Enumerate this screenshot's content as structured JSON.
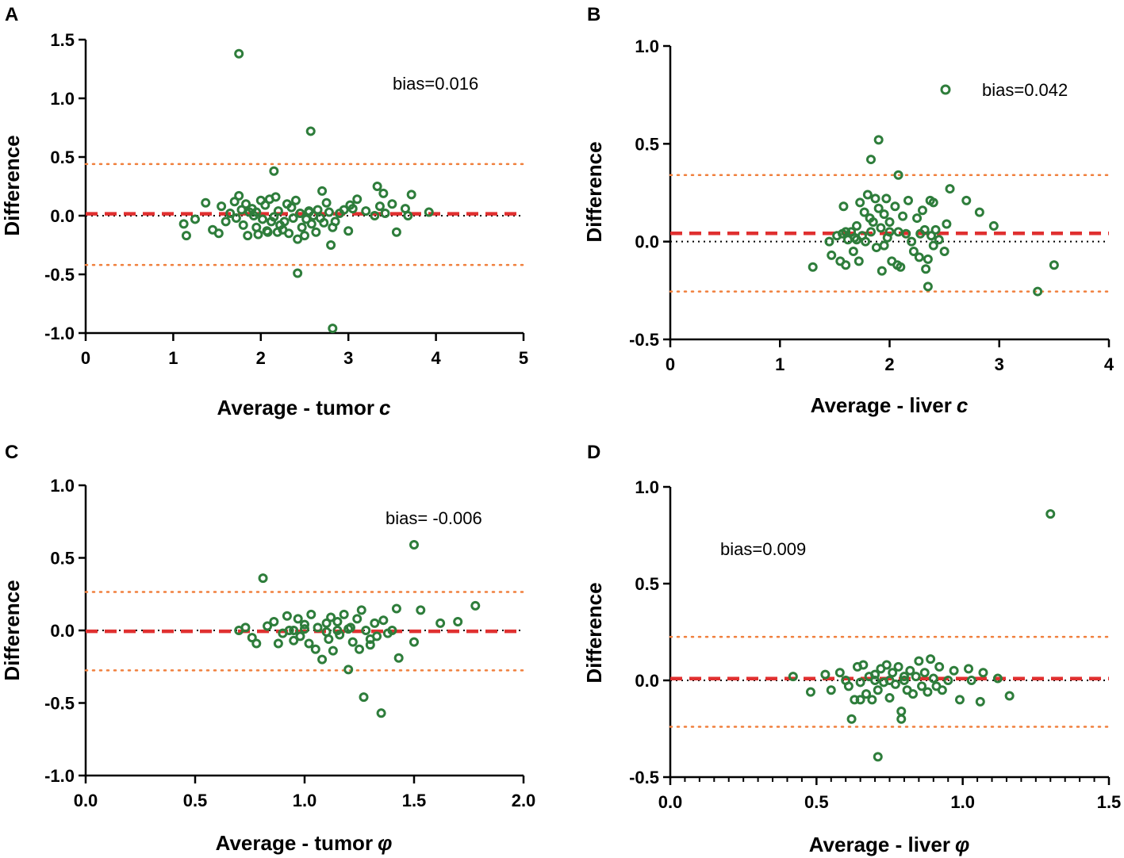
{
  "chart_data": [
    {
      "panel": "A",
      "type": "scatter",
      "title": "",
      "xlabel": "Average - tumor",
      "xlabel_symbol": "c",
      "ylabel": "Difference",
      "xlim": [
        0,
        5
      ],
      "ylim": [
        -1.0,
        1.5
      ],
      "xticks": [
        "0",
        "1",
        "2",
        "3",
        "4",
        "5"
      ],
      "xtick_values": [
        0,
        1,
        2,
        3,
        4,
        5
      ],
      "yticks": [
        "-1.0",
        "-0.5",
        "0.0",
        "0.5",
        "1.0",
        "1.5"
      ],
      "ytick_values": [
        -1.0,
        -0.5,
        0.0,
        0.5,
        1.0,
        1.5
      ],
      "bias_label": "bias=0.016",
      "bias": 0.016,
      "loa_upper": 0.44,
      "loa_lower": -0.42,
      "points": [
        [
          1.75,
          1.38
        ],
        [
          2.57,
          0.72
        ],
        [
          2.15,
          0.38
        ],
        [
          1.12,
          -0.07
        ],
        [
          1.15,
          -0.17
        ],
        [
          1.25,
          -0.03
        ],
        [
          1.37,
          0.11
        ],
        [
          1.45,
          -0.12
        ],
        [
          1.52,
          -0.15
        ],
        [
          1.55,
          0.08
        ],
        [
          1.6,
          -0.05
        ],
        [
          1.65,
          0.02
        ],
        [
          1.7,
          0.12
        ],
        [
          1.72,
          -0.02
        ],
        [
          1.75,
          0.17
        ],
        [
          1.78,
          0.05
        ],
        [
          1.8,
          -0.08
        ],
        [
          1.83,
          0.1
        ],
        [
          1.85,
          -0.17
        ],
        [
          1.87,
          0.03
        ],
        [
          1.9,
          0.06
        ],
        [
          1.92,
          0.0
        ],
        [
          1.95,
          -0.1
        ],
        [
          1.97,
          -0.16
        ],
        [
          2.0,
          0.13
        ],
        [
          2.02,
          -0.03
        ],
        [
          2.05,
          0.09
        ],
        [
          2.07,
          -0.13
        ],
        [
          2.1,
          0.14
        ],
        [
          2.12,
          -0.05
        ],
        [
          2.15,
          -0.01
        ],
        [
          2.17,
          0.16
        ],
        [
          2.19,
          -0.14
        ],
        [
          2.2,
          0.04
        ],
        [
          2.22,
          -0.08
        ],
        [
          2.25,
          -0.12
        ],
        [
          2.27,
          -0.05
        ],
        [
          2.3,
          0.1
        ],
        [
          2.32,
          -0.15
        ],
        [
          2.35,
          0.07
        ],
        [
          2.37,
          -0.02
        ],
        [
          2.4,
          0.13
        ],
        [
          2.42,
          -0.2
        ],
        [
          2.45,
          0.02
        ],
        [
          2.47,
          -0.1
        ],
        [
          2.5,
          -0.17
        ],
        [
          2.52,
          -0.03
        ],
        [
          2.55,
          0.04
        ],
        [
          2.58,
          -0.07
        ],
        [
          2.6,
          0.0
        ],
        [
          2.63,
          -0.14
        ],
        [
          2.65,
          0.05
        ],
        [
          2.68,
          -0.02
        ],
        [
          2.7,
          0.21
        ],
        [
          2.72,
          -0.06
        ],
        [
          2.75,
          0.11
        ],
        [
          2.78,
          0.03
        ],
        [
          2.8,
          -0.25
        ],
        [
          2.82,
          -0.1
        ],
        [
          2.85,
          -0.05
        ],
        [
          2.9,
          0.02
        ],
        [
          2.95,
          0.05
        ],
        [
          3.0,
          -0.13
        ],
        [
          3.02,
          0.09
        ],
        [
          3.05,
          0.06
        ],
        [
          3.1,
          0.14
        ],
        [
          3.2,
          0.04
        ],
        [
          3.3,
          0.0
        ],
        [
          3.33,
          0.25
        ],
        [
          3.36,
          0.08
        ],
        [
          3.4,
          0.19
        ],
        [
          3.42,
          0.02
        ],
        [
          3.5,
          0.1
        ],
        [
          3.55,
          -0.14
        ],
        [
          3.65,
          0.06
        ],
        [
          3.68,
          0.0
        ],
        [
          3.72,
          0.18
        ],
        [
          3.92,
          0.03
        ],
        [
          2.42,
          -0.49
        ],
        [
          2.82,
          -0.96
        ],
        [
          2.08,
          -0.14
        ],
        [
          1.95,
          0.03
        ],
        [
          2.55,
          0.03
        ]
      ]
    },
    {
      "panel": "B",
      "type": "scatter",
      "title": "",
      "xlabel": "Average - liver",
      "xlabel_symbol": "c",
      "ylabel": "Difference",
      "xlim": [
        0,
        4
      ],
      "ylim": [
        -0.5,
        1.0
      ],
      "xticks": [
        "0",
        "1",
        "2",
        "3",
        "4"
      ],
      "xtick_values": [
        0,
        1,
        2,
        3,
        4
      ],
      "yticks": [
        "-0.5",
        "0.0",
        "0.5",
        "1.0"
      ],
      "ytick_values": [
        -0.5,
        0.0,
        0.5,
        1.0
      ],
      "bias_label": "bias=0.042",
      "bias": 0.042,
      "loa_upper": 0.34,
      "loa_lower": -0.255,
      "legend_position": "top-right",
      "points": [
        [
          1.9,
          0.52
        ],
        [
          1.83,
          0.42
        ],
        [
          2.08,
          0.34
        ],
        [
          1.3,
          -0.13
        ],
        [
          1.45,
          0.0
        ],
        [
          1.47,
          -0.07
        ],
        [
          1.52,
          0.03
        ],
        [
          1.55,
          -0.1
        ],
        [
          1.57,
          0.04
        ],
        [
          1.58,
          0.18
        ],
        [
          1.6,
          -0.12
        ],
        [
          1.62,
          0.01
        ],
        [
          1.65,
          0.05
        ],
        [
          1.67,
          -0.05
        ],
        [
          1.68,
          0.02
        ],
        [
          1.7,
          0.08
        ],
        [
          1.72,
          -0.1
        ],
        [
          1.73,
          0.2
        ],
        [
          1.75,
          0.03
        ],
        [
          1.77,
          0.15
        ],
        [
          1.78,
          0.0
        ],
        [
          1.8,
          0.24
        ],
        [
          1.82,
          0.12
        ],
        [
          1.83,
          0.05
        ],
        [
          1.85,
          0.1
        ],
        [
          1.87,
          0.22
        ],
        [
          1.88,
          -0.03
        ],
        [
          1.9,
          0.17
        ],
        [
          1.92,
          0.07
        ],
        [
          1.93,
          -0.15
        ],
        [
          1.95,
          0.14
        ],
        [
          1.97,
          0.22
        ],
        [
          1.98,
          0.02
        ],
        [
          2.0,
          0.1
        ],
        [
          2.02,
          -0.1
        ],
        [
          2.05,
          0.18
        ],
        [
          2.07,
          -0.12
        ],
        [
          2.08,
          0.05
        ],
        [
          2.1,
          -0.13
        ],
        [
          2.12,
          0.13
        ],
        [
          2.15,
          0.04
        ],
        [
          2.17,
          0.21
        ],
        [
          2.2,
          0.0
        ],
        [
          2.22,
          -0.05
        ],
        [
          2.25,
          0.12
        ],
        [
          2.27,
          -0.08
        ],
        [
          2.3,
          0.16
        ],
        [
          2.32,
          0.06
        ],
        [
          2.33,
          -0.14
        ],
        [
          2.35,
          -0.09
        ],
        [
          2.37,
          0.21
        ],
        [
          2.38,
          0.03
        ],
        [
          2.4,
          -0.02
        ],
        [
          2.42,
          0.06
        ],
        [
          2.45,
          0.01
        ],
        [
          2.5,
          -0.05
        ],
        [
          2.52,
          0.09
        ],
        [
          2.55,
          0.27
        ],
        [
          2.7,
          0.21
        ],
        [
          2.82,
          0.15
        ],
        [
          2.95,
          0.08
        ],
        [
          3.35,
          -0.255
        ],
        [
          3.5,
          -0.12
        ],
        [
          2.35,
          -0.23
        ],
        [
          1.6,
          0.05
        ],
        [
          1.7,
          0.01
        ],
        [
          2.0,
          0.05
        ],
        [
          2.28,
          0.04
        ],
        [
          1.95,
          -0.02
        ],
        [
          2.4,
          0.2
        ]
      ]
    },
    {
      "panel": "C",
      "type": "scatter",
      "title": "",
      "xlabel": "Average - tumor",
      "xlabel_symbol": "φ",
      "ylabel": "Difference",
      "xlim": [
        0.0,
        2.0
      ],
      "ylim": [
        -1.0,
        1.0
      ],
      "xticks": [
        "0.0",
        "0.5",
        "1.0",
        "1.5",
        "2.0"
      ],
      "xtick_values": [
        0.0,
        0.5,
        1.0,
        1.5,
        2.0
      ],
      "yticks": [
        "-1.0",
        "-0.5",
        "0.0",
        "0.5",
        "1.0"
      ],
      "ytick_values": [
        -1.0,
        -0.5,
        0.0,
        0.5,
        1.0
      ],
      "bias_label": "bias= -0.006",
      "bias": -0.006,
      "loa_upper": 0.265,
      "loa_lower": -0.275,
      "points": [
        [
          0.81,
          0.36
        ],
        [
          1.5,
          0.59
        ],
        [
          0.7,
          0.0
        ],
        [
          0.73,
          0.02
        ],
        [
          0.76,
          -0.05
        ],
        [
          0.78,
          -0.09
        ],
        [
          0.83,
          0.03
        ],
        [
          0.86,
          0.06
        ],
        [
          0.88,
          -0.09
        ],
        [
          0.9,
          -0.02
        ],
        [
          0.92,
          0.1
        ],
        [
          0.93,
          0.0
        ],
        [
          0.95,
          -0.07
        ],
        [
          0.97,
          0.08
        ],
        [
          0.98,
          -0.04
        ],
        [
          1.0,
          0.04
        ],
        [
          1.02,
          -0.09
        ],
        [
          1.03,
          0.11
        ],
        [
          1.05,
          -0.13
        ],
        [
          1.06,
          0.02
        ],
        [
          1.08,
          -0.2
        ],
        [
          1.1,
          0.05
        ],
        [
          1.11,
          -0.06
        ],
        [
          1.12,
          0.09
        ],
        [
          1.13,
          -0.14
        ],
        [
          1.15,
          0.06
        ],
        [
          1.16,
          -0.03
        ],
        [
          1.18,
          0.11
        ],
        [
          1.2,
          -0.27
        ],
        [
          1.21,
          0.02
        ],
        [
          1.22,
          -0.08
        ],
        [
          1.24,
          0.08
        ],
        [
          1.25,
          -0.13
        ],
        [
          1.26,
          0.14
        ],
        [
          1.27,
          -0.46
        ],
        [
          1.28,
          0.0
        ],
        [
          1.3,
          -0.1
        ],
        [
          1.32,
          0.05
        ],
        [
          1.33,
          -0.04
        ],
        [
          1.35,
          -0.57
        ],
        [
          1.36,
          0.07
        ],
        [
          1.38,
          -0.02
        ],
        [
          1.4,
          0.0
        ],
        [
          1.42,
          0.15
        ],
        [
          1.43,
          -0.19
        ],
        [
          1.5,
          -0.08
        ],
        [
          1.53,
          0.14
        ],
        [
          1.62,
          0.05
        ],
        [
          1.7,
          0.06
        ],
        [
          1.78,
          0.17
        ],
        [
          1.0,
          0.01
        ],
        [
          1.1,
          -0.01
        ],
        [
          1.2,
          0.01
        ],
        [
          1.3,
          -0.06
        ],
        [
          1.15,
          0.0
        ],
        [
          0.95,
          0.0
        ]
      ]
    },
    {
      "panel": "D",
      "type": "scatter",
      "title": "",
      "xlabel": "Average - liver",
      "xlabel_symbol": "φ",
      "ylabel": "Difference",
      "xlim": [
        0.0,
        1.5
      ],
      "ylim": [
        -0.5,
        1.0
      ],
      "xticks": [
        "0.0",
        "0.5",
        "1.0",
        "1.5"
      ],
      "xtick_values": [
        0.0,
        0.5,
        1.0,
        1.5
      ],
      "yticks": [
        "-0.5",
        "0.0",
        "0.5",
        "1.0"
      ],
      "ytick_values": [
        -0.5,
        0.0,
        0.5,
        1.0
      ],
      "bias_label": "bias=0.009",
      "bias": 0.009,
      "loa_upper": 0.225,
      "loa_lower": -0.24,
      "points": [
        [
          1.3,
          0.86
        ],
        [
          0.71,
          -0.395
        ],
        [
          0.42,
          0.02
        ],
        [
          0.48,
          -0.06
        ],
        [
          0.53,
          0.03
        ],
        [
          0.55,
          -0.05
        ],
        [
          0.58,
          0.04
        ],
        [
          0.6,
          0.0
        ],
        [
          0.61,
          -0.03
        ],
        [
          0.62,
          -0.2
        ],
        [
          0.63,
          -0.1
        ],
        [
          0.64,
          0.07
        ],
        [
          0.65,
          -0.01
        ],
        [
          0.66,
          0.08
        ],
        [
          0.67,
          -0.07
        ],
        [
          0.68,
          0.02
        ],
        [
          0.69,
          -0.1
        ],
        [
          0.7,
          0.03
        ],
        [
          0.71,
          -0.05
        ],
        [
          0.72,
          0.06
        ],
        [
          0.73,
          -0.01
        ],
        [
          0.74,
          0.08
        ],
        [
          0.75,
          -0.09
        ],
        [
          0.76,
          0.04
        ],
        [
          0.77,
          -0.02
        ],
        [
          0.78,
          0.07
        ],
        [
          0.79,
          -0.2
        ],
        [
          0.8,
          0.0
        ],
        [
          0.81,
          -0.05
        ],
        [
          0.82,
          0.05
        ],
        [
          0.83,
          -0.07
        ],
        [
          0.84,
          0.02
        ],
        [
          0.85,
          0.1
        ],
        [
          0.86,
          -0.03
        ],
        [
          0.87,
          0.04
        ],
        [
          0.88,
          -0.06
        ],
        [
          0.89,
          0.11
        ],
        [
          0.9,
          0.01
        ],
        [
          0.91,
          -0.03
        ],
        [
          0.92,
          0.07
        ],
        [
          0.93,
          -0.05
        ],
        [
          0.95,
          0.0
        ],
        [
          0.97,
          0.05
        ],
        [
          0.99,
          -0.1
        ],
        [
          1.02,
          0.06
        ],
        [
          1.03,
          0.0
        ],
        [
          1.06,
          -0.11
        ],
        [
          1.07,
          0.04
        ],
        [
          1.12,
          0.01
        ],
        [
          1.16,
          -0.08
        ],
        [
          0.79,
          -0.16
        ],
        [
          0.65,
          -0.1
        ],
        [
          0.7,
          0.0
        ],
        [
          0.75,
          0.0
        ],
        [
          0.8,
          0.02
        ]
      ]
    }
  ],
  "colors": {
    "points": "#2e7d3b",
    "bias_line": "#e03030",
    "loa_line": "#f07f3c",
    "zero_line": "#000000",
    "axis": "#000000"
  }
}
